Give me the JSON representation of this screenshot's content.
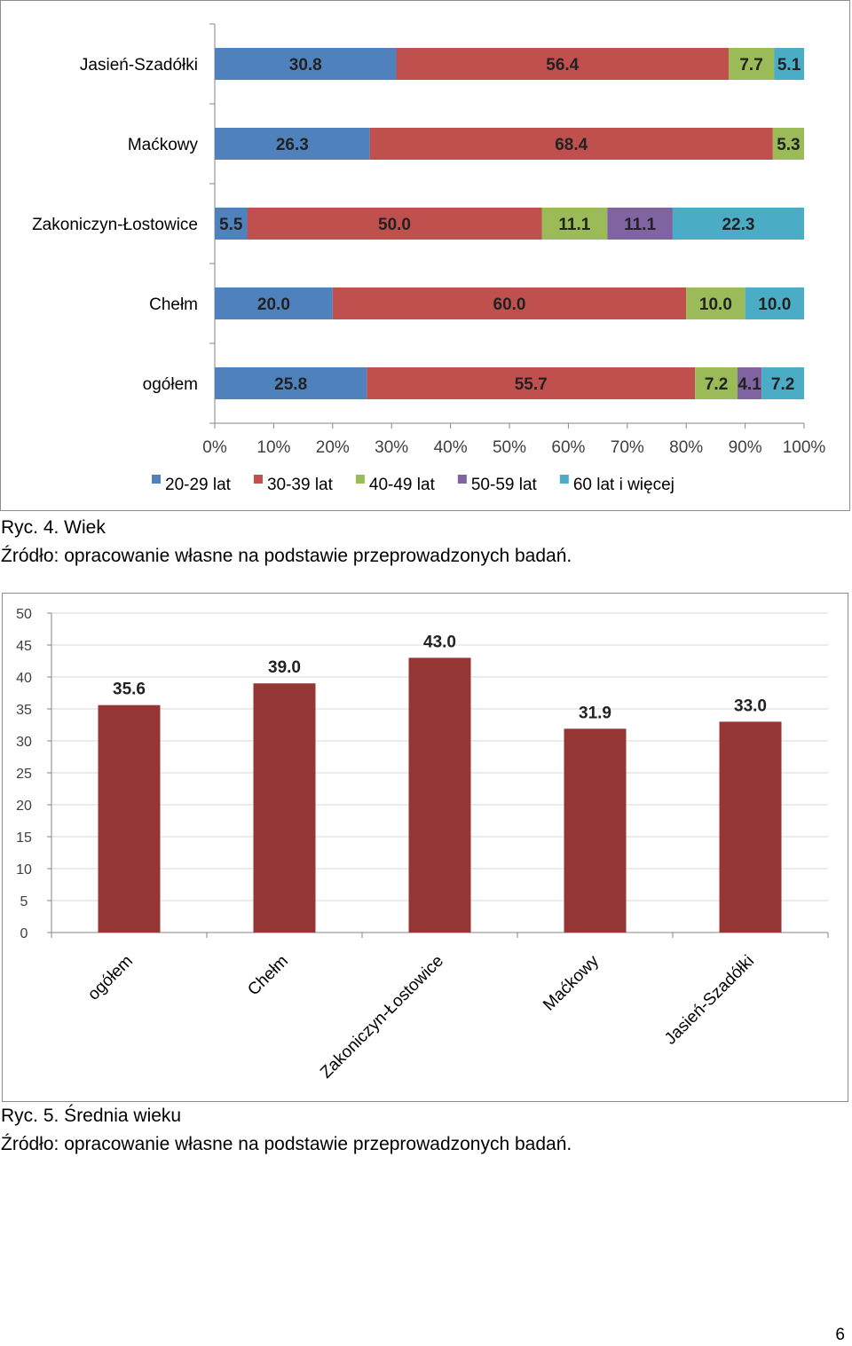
{
  "colors": {
    "s20_29": "#4f81bd",
    "s30_39": "#c0504d",
    "s40_49": "#9bbb59",
    "s50_59": "#8064a2",
    "s60plus": "#4bacc6",
    "bar": "#943634",
    "axis": "#868686",
    "grid": "#d9d9d9"
  },
  "chart_data": [
    {
      "type": "bar",
      "orientation": "horizontal",
      "stacked": "percent",
      "categories": [
        "Jasień-Szadółki",
        "Maćkowy",
        "Zakoniczyn-Łostowice",
        "Chełm",
        "ogółem"
      ],
      "series": [
        {
          "name": "20-29 lat",
          "color_key": "s20_29",
          "values": [
            30.8,
            26.3,
            5.5,
            20.0,
            25.8
          ],
          "labels": [
            "30.8",
            "26.3",
            "5.5",
            "20.0",
            "25.8"
          ]
        },
        {
          "name": "30-39 lat",
          "color_key": "s30_39",
          "values": [
            56.4,
            68.4,
            50.0,
            60.0,
            55.7
          ],
          "labels": [
            "56.4",
            "68.4",
            "50.0",
            "60.0",
            "55.7"
          ]
        },
        {
          "name": "40-49 lat",
          "color_key": "s40_49",
          "values": [
            7.7,
            5.3,
            11.1,
            10.0,
            7.2
          ],
          "labels": [
            "7.7",
            "5.3",
            "11.1",
            "10.0",
            "7.2"
          ]
        },
        {
          "name": "50-59 lat",
          "color_key": "s50_59",
          "values": [
            0,
            0,
            11.1,
            0,
            4.1
          ],
          "labels": [
            "",
            "",
            "11.1",
            "",
            "4.1"
          ]
        },
        {
          "name": "60 lat i więcej",
          "color_key": "s60plus",
          "values": [
            5.1,
            0,
            22.3,
            10.0,
            7.2
          ],
          "labels": [
            "5.1",
            "",
            "22.3",
            "10.0",
            "7.2"
          ]
        }
      ],
      "xlim": [
        0,
        100
      ],
      "xticks": [
        "0%",
        "10%",
        "20%",
        "30%",
        "40%",
        "50%",
        "60%",
        "70%",
        "80%",
        "90%",
        "100%"
      ],
      "legend_position": "bottom",
      "grid": false
    },
    {
      "type": "bar",
      "categories": [
        "ogółem",
        "Chełm",
        "Zakoniczyn-Łostowice",
        "Maćkowy",
        "Jasień-Szadółki"
      ],
      "values": [
        35.6,
        39.0,
        43.0,
        31.9,
        33.0
      ],
      "labels": [
        "35.6",
        "39.0",
        "43.0",
        "31.9",
        "33.0"
      ],
      "ylim": [
        0,
        50
      ],
      "yticks": [
        "0",
        "5",
        "10",
        "15",
        "20",
        "25",
        "30",
        "35",
        "40",
        "45",
        "50"
      ],
      "grid": true,
      "color_key": "bar"
    }
  ],
  "captions": {
    "fig4_title": "Ryc. 4. Wiek",
    "fig4_source": "Źródło: opracowanie własne na podstawie przeprowadzonych badań.",
    "fig5_title": "Ryc. 5. Średnia wieku",
    "fig5_source": "Źródło: opracowanie własne na podstawie przeprowadzonych badań."
  },
  "page_number": "6"
}
